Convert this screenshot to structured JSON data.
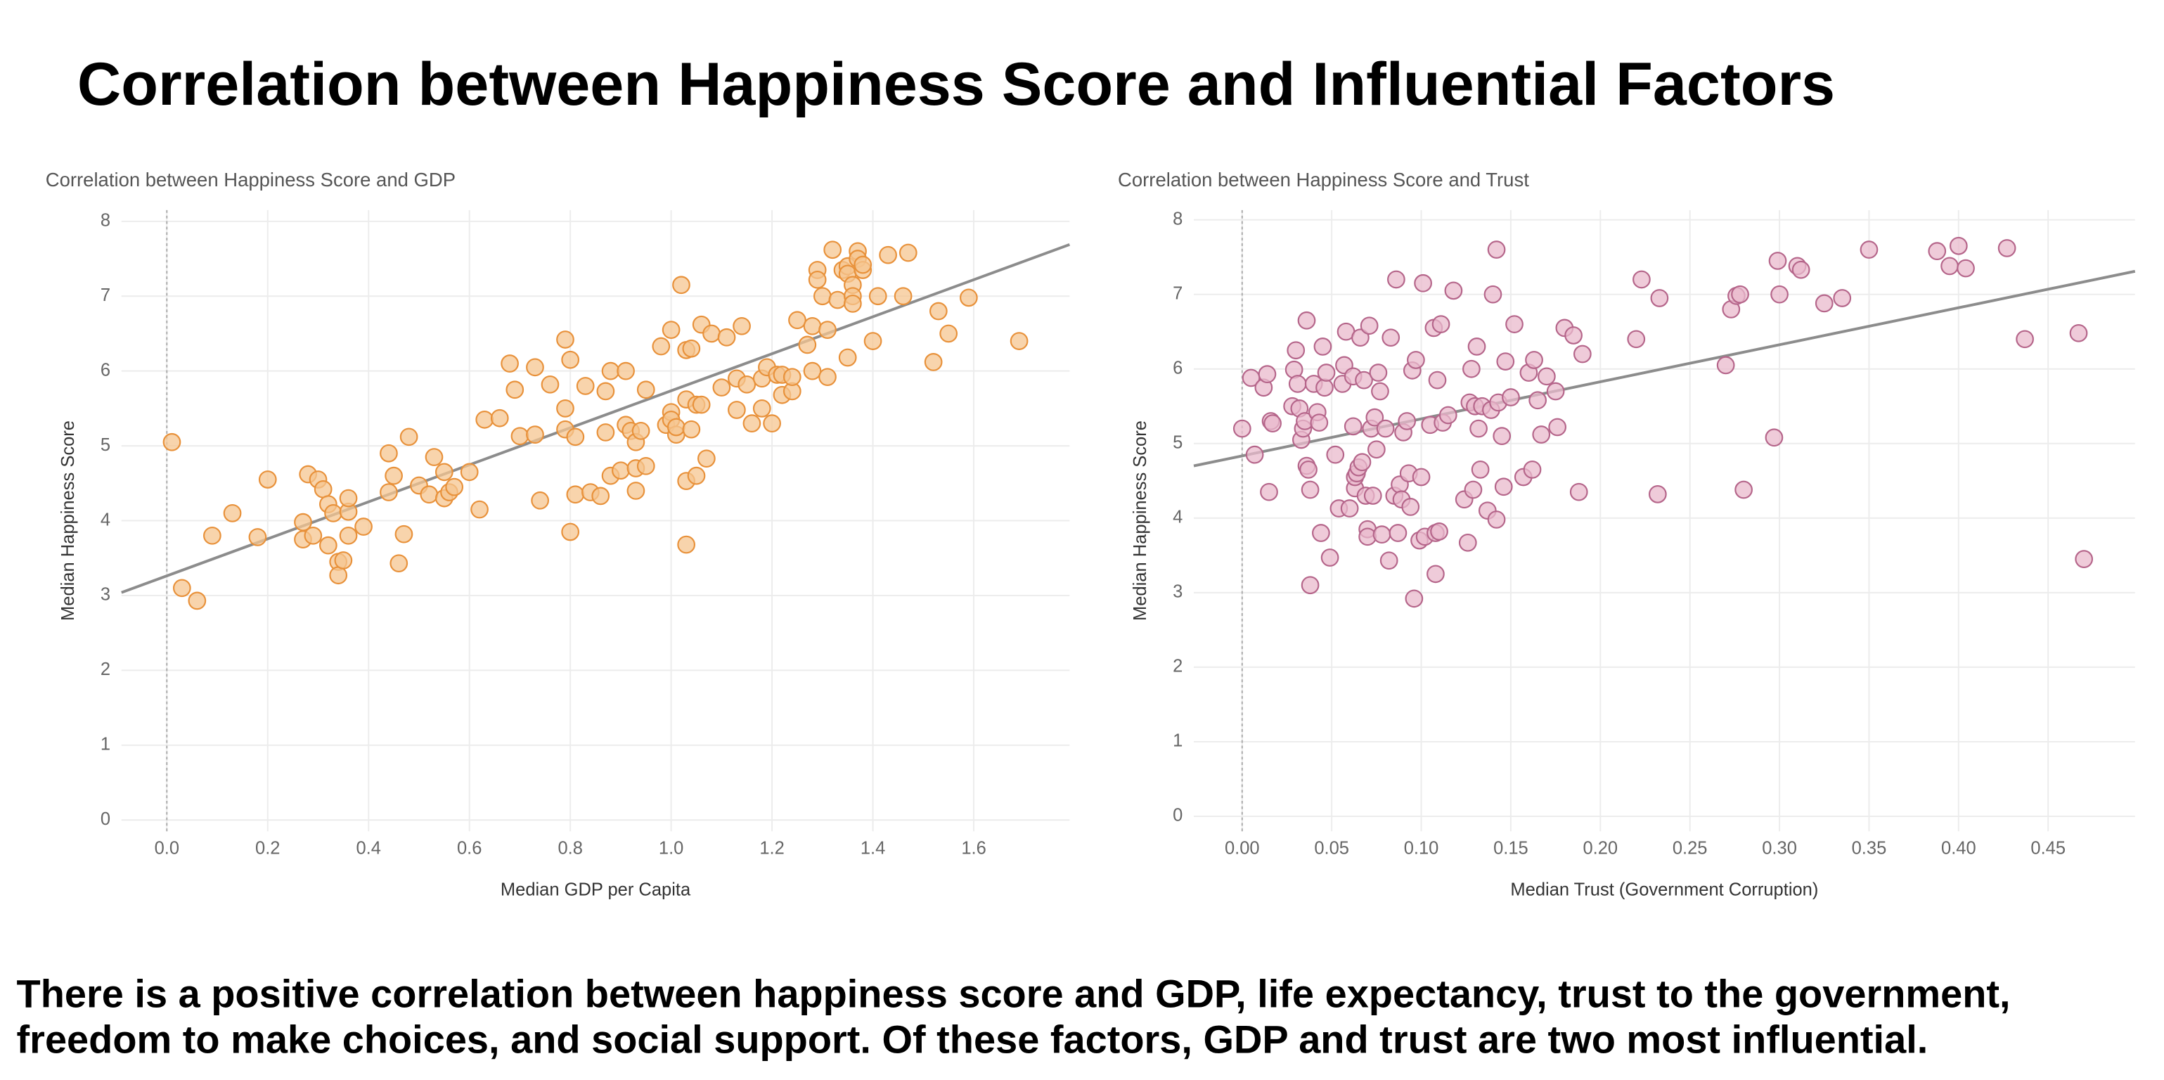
{
  "title": "Correlation between Happiness Score and Influential Factors",
  "conclusion": [
    "There is a positive correlation between happiness score and GDP, life expectancy, trust to the government,",
    "freedom to make choices, and social support. Of these factors, GDP and trust are two most influential."
  ],
  "chart_data": [
    {
      "type": "scatter",
      "title": "Correlation between Happiness Score and GDP",
      "x_label": "Median GDP per Capita",
      "y_label": "Median Happiness Score",
      "color": "#f6c590",
      "edge_color": "#e8913a",
      "xlim": [
        -0.09,
        1.79
      ],
      "ylim": [
        -0.15,
        8.15
      ],
      "xticks": [
        {
          "value": 0,
          "label": "0.0"
        },
        {
          "value": 0.2,
          "label": "0.2"
        },
        {
          "value": 0.4,
          "label": "0.4"
        },
        {
          "value": 0.6,
          "label": "0.6"
        },
        {
          "value": 0.8,
          "label": "0.8"
        },
        {
          "value": 1,
          "label": "1.0"
        },
        {
          "value": 1.2,
          "label": "1.2"
        },
        {
          "value": 1.4,
          "label": "1.4"
        },
        {
          "value": 1.6,
          "label": "1.6"
        }
      ],
      "yticks": [
        0,
        1,
        2,
        3,
        4,
        5,
        6,
        7,
        8
      ],
      "grid": true,
      "trend": {
        "x": [
          -0.09,
          1.79
        ],
        "values": [
          3.04,
          7.69
        ],
        "color": "#8c8c8c"
      },
      "x": [
        0.01,
        0.03,
        0.06,
        0.09,
        0.13,
        0.18,
        0.2,
        0.27,
        0.27,
        0.28,
        0.29,
        0.3,
        0.31,
        0.32,
        0.32,
        0.33,
        0.34,
        0.34,
        0.35,
        0.36,
        0.36,
        0.36,
        0.39,
        0.44,
        0.44,
        0.45,
        0.46,
        0.47,
        0.48,
        0.5,
        0.52,
        0.53,
        0.55,
        0.55,
        0.56,
        0.57,
        0.6,
        0.62,
        0.63,
        0.66,
        0.68,
        0.69,
        0.7,
        0.73,
        0.73,
        0.74,
        0.76,
        0.79,
        0.79,
        0.79,
        0.8,
        0.8,
        0.81,
        0.81,
        0.83,
        0.84,
        0.86,
        0.87,
        0.87,
        0.88,
        0.88,
        0.9,
        0.91,
        0.91,
        0.92,
        0.93,
        0.93,
        0.93,
        0.94,
        0.95,
        0.95,
        0.98,
        0.99,
        1.0,
        1.0,
        1.0,
        1.01,
        1.01,
        1.02,
        1.03,
        1.03,
        1.03,
        1.03,
        1.04,
        1.04,
        1.05,
        1.05,
        1.06,
        1.06,
        1.07,
        1.08,
        1.1,
        1.11,
        1.13,
        1.13,
        1.14,
        1.15,
        1.16,
        1.18,
        1.18,
        1.19,
        1.2,
        1.21,
        1.22,
        1.22,
        1.24,
        1.24,
        1.25,
        1.27,
        1.28,
        1.28,
        1.29,
        1.29,
        1.3,
        1.31,
        1.31,
        1.32,
        1.33,
        1.34,
        1.35,
        1.35,
        1.36,
        1.36,
        1.36,
        1.37,
        1.37,
        1.38,
        1.38,
        1.4,
        1.41,
        1.43,
        1.46,
        1.47,
        1.52,
        1.53,
        1.55,
        1.59,
        1.69,
        1.35
      ],
      "values": [
        5.05,
        3.1,
        2.93,
        3.8,
        4.1,
        3.78,
        4.55,
        3.75,
        3.98,
        4.62,
        3.8,
        4.55,
        4.42,
        4.22,
        3.67,
        4.1,
        3.45,
        3.27,
        3.47,
        4.12,
        4.3,
        3.8,
        3.92,
        4.38,
        4.9,
        4.6,
        3.43,
        3.82,
        5.12,
        4.47,
        4.35,
        4.85,
        4.3,
        4.65,
        4.38,
        4.45,
        4.65,
        4.15,
        5.35,
        5.37,
        6.1,
        5.75,
        5.13,
        6.05,
        5.15,
        4.27,
        5.82,
        6.42,
        5.5,
        5.22,
        6.15,
        3.85,
        4.35,
        5.12,
        5.8,
        4.38,
        4.33,
        5.18,
        5.73,
        6.0,
        4.6,
        4.67,
        6.0,
        5.28,
        5.2,
        5.05,
        4.4,
        4.7,
        5.2,
        4.73,
        5.75,
        6.33,
        5.28,
        5.45,
        5.35,
        6.55,
        5.15,
        5.25,
        7.15,
        4.53,
        3.68,
        5.62,
        6.28,
        5.22,
        6.3,
        5.55,
        4.6,
        6.62,
        5.55,
        4.83,
        6.5,
        5.78,
        6.45,
        5.48,
        5.9,
        6.6,
        5.82,
        5.3,
        5.9,
        5.5,
        6.05,
        5.3,
        5.95,
        5.68,
        5.95,
        5.73,
        5.92,
        6.68,
        6.35,
        6.0,
        6.6,
        7.35,
        7.22,
        7.0,
        5.92,
        6.55,
        7.62,
        6.95,
        7.35,
        7.4,
        7.3,
        7.15,
        7.0,
        6.9,
        7.6,
        7.5,
        7.35,
        7.42,
        6.4,
        7.0,
        7.55,
        7.0,
        7.58,
        6.12,
        6.8,
        6.5,
        6.98,
        6.4,
        6.18
      ]
    },
    {
      "type": "scatter",
      "title": "Correlation between Happiness Score and Trust",
      "x_label": "Median Trust (Government Corruption)",
      "y_label": "Median Happiness Score",
      "color": "#eab9cc",
      "edge_color": "#b5658a",
      "xlim": [
        -0.027,
        0.4985
      ],
      "ylim": [
        -0.2,
        8.13
      ],
      "xticks": [
        {
          "value": 0,
          "label": "0.00"
        },
        {
          "value": 0.05,
          "label": "0.05"
        },
        {
          "value": 0.1,
          "label": "0.10"
        },
        {
          "value": 0.15,
          "label": "0.15"
        },
        {
          "value": 0.2,
          "label": "0.20"
        },
        {
          "value": 0.25,
          "label": "0.25"
        },
        {
          "value": 0.3,
          "label": "0.30"
        },
        {
          "value": 0.35,
          "label": "0.35"
        },
        {
          "value": 0.4,
          "label": "0.40"
        },
        {
          "value": 0.45,
          "label": "0.45"
        }
      ],
      "yticks": [
        0,
        1,
        2,
        3,
        4,
        5,
        6,
        7,
        8
      ],
      "grid": true,
      "trend": {
        "x": [
          -0.027,
          0.4985
        ],
        "values": [
          4.7,
          7.31
        ],
        "color": "#8c8c8c"
      },
      "x": [
        0.0,
        0.005,
        0.007,
        0.012,
        0.014,
        0.015,
        0.016,
        0.017,
        0.028,
        0.029,
        0.03,
        0.031,
        0.032,
        0.033,
        0.034,
        0.035,
        0.036,
        0.036,
        0.037,
        0.038,
        0.038,
        0.04,
        0.042,
        0.043,
        0.044,
        0.045,
        0.046,
        0.047,
        0.049,
        0.052,
        0.054,
        0.056,
        0.057,
        0.058,
        0.06,
        0.062,
        0.062,
        0.063,
        0.063,
        0.064,
        0.065,
        0.066,
        0.067,
        0.068,
        0.069,
        0.07,
        0.07,
        0.071,
        0.072,
        0.073,
        0.074,
        0.075,
        0.076,
        0.077,
        0.078,
        0.08,
        0.082,
        0.083,
        0.085,
        0.086,
        0.087,
        0.088,
        0.089,
        0.09,
        0.092,
        0.093,
        0.094,
        0.095,
        0.096,
        0.097,
        0.099,
        0.1,
        0.101,
        0.102,
        0.105,
        0.107,
        0.108,
        0.108,
        0.109,
        0.11,
        0.111,
        0.112,
        0.115,
        0.118,
        0.124,
        0.126,
        0.127,
        0.128,
        0.129,
        0.13,
        0.131,
        0.132,
        0.133,
        0.134,
        0.137,
        0.139,
        0.14,
        0.142,
        0.142,
        0.143,
        0.145,
        0.146,
        0.147,
        0.15,
        0.152,
        0.157,
        0.16,
        0.162,
        0.163,
        0.165,
        0.167,
        0.17,
        0.175,
        0.176,
        0.18,
        0.185,
        0.188,
        0.19,
        0.22,
        0.223,
        0.232,
        0.233,
        0.27,
        0.273,
        0.276,
        0.278,
        0.28,
        0.297,
        0.299,
        0.3,
        0.31,
        0.312,
        0.325,
        0.335,
        0.35,
        0.388,
        0.395,
        0.4,
        0.404,
        0.427,
        0.437,
        0.467,
        0.47
      ],
      "values": [
        5.2,
        5.88,
        4.85,
        5.75,
        5.93,
        4.35,
        5.3,
        5.27,
        5.5,
        5.99,
        6.25,
        5.8,
        5.47,
        5.05,
        5.2,
        5.3,
        6.65,
        4.7,
        4.65,
        4.38,
        3.1,
        5.8,
        5.42,
        5.28,
        3.8,
        6.3,
        5.75,
        5.95,
        3.47,
        4.85,
        4.13,
        5.8,
        6.05,
        6.5,
        4.13,
        5.9,
        5.23,
        4.4,
        4.55,
        4.6,
        4.68,
        6.42,
        4.75,
        5.85,
        4.3,
        3.85,
        3.75,
        6.58,
        5.2,
        4.3,
        5.35,
        4.92,
        5.95,
        5.7,
        3.78,
        5.2,
        3.43,
        6.42,
        4.3,
        7.2,
        3.8,
        4.45,
        4.25,
        5.15,
        5.3,
        4.6,
        4.15,
        5.98,
        2.92,
        6.12,
        3.7,
        4.55,
        7.15,
        3.75,
        5.25,
        6.55,
        3.8,
        3.25,
        5.85,
        3.82,
        6.6,
        5.28,
        5.38,
        7.05,
        4.25,
        3.67,
        5.55,
        6.0,
        4.38,
        5.5,
        6.3,
        5.2,
        4.65,
        5.5,
        4.1,
        5.45,
        7.0,
        3.98,
        7.6,
        5.55,
        5.1,
        4.42,
        6.1,
        5.62,
        6.6,
        4.55,
        5.95,
        4.65,
        6.12,
        5.58,
        5.12,
        5.9,
        5.7,
        5.22,
        6.55,
        6.45,
        4.35,
        6.2,
        6.4,
        7.2,
        4.32,
        6.95,
        6.05,
        6.8,
        6.98,
        7.0,
        4.38,
        5.08,
        7.45,
        7.0,
        7.38,
        7.33,
        6.88,
        6.95,
        7.6,
        7.58,
        7.38,
        7.65,
        7.35,
        7.62,
        6.4,
        6.48,
        3.45
      ]
    }
  ]
}
